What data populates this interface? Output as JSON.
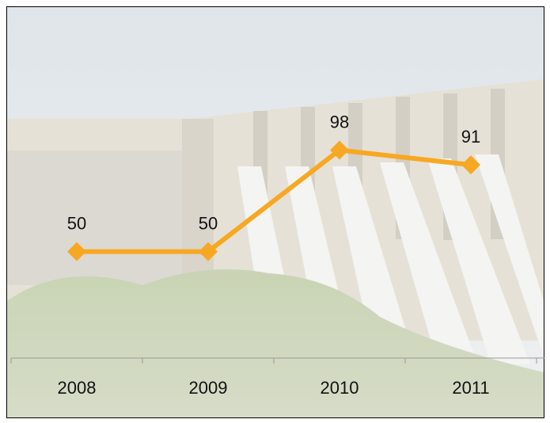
{
  "chart_data": {
    "type": "line",
    "categories": [
      "2008",
      "2009",
      "2010",
      "2011"
    ],
    "values": [
      50,
      50,
      98,
      91
    ],
    "color": "#f7a823",
    "ylim": [
      0,
      160
    ],
    "data_labels": true
  }
}
